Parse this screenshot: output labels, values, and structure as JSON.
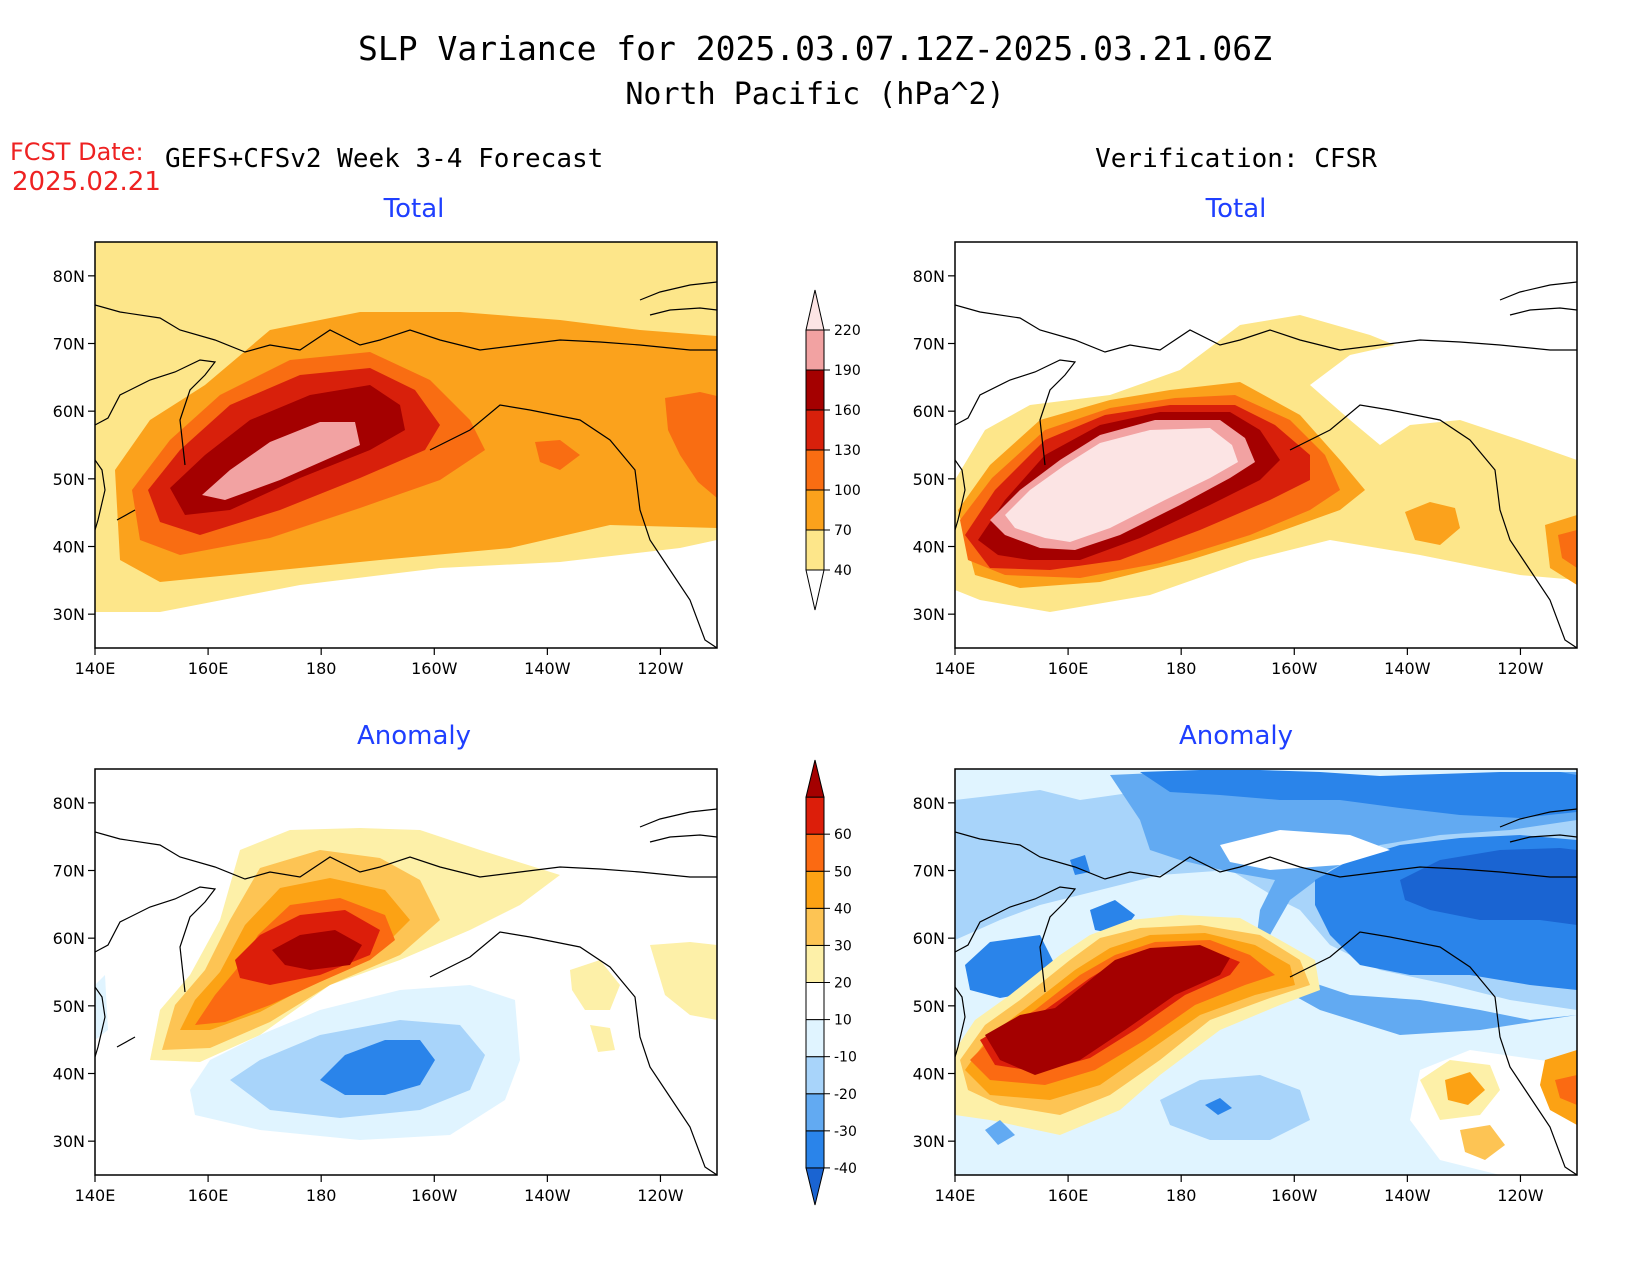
{
  "title": {
    "line1": "SLP Variance for 2025.03.07.12Z-2025.03.21.06Z",
    "line2": "North Pacific (hPa^2)"
  },
  "fcst_date": {
    "label": "FCST Date:",
    "value": "2025.02.21"
  },
  "columns": {
    "left": "GEFS+CFSv2 Week 3-4 Forecast",
    "right": "Verification: CFSR"
  },
  "panels": {
    "tl": {
      "subtitle": "Total"
    },
    "tr": {
      "subtitle": "Total"
    },
    "bl": {
      "subtitle": "Anomaly"
    },
    "br": {
      "subtitle": "Anomaly"
    }
  },
  "axes": {
    "lon_ticks": [
      "140E",
      "160E",
      "180",
      "160W",
      "140W",
      "120W"
    ],
    "lon_values": [
      140,
      160,
      180,
      200,
      220,
      240
    ],
    "lon_range": [
      140,
      250
    ],
    "lat_ticks": [
      "30N",
      "40N",
      "50N",
      "60N",
      "70N",
      "80N"
    ],
    "lat_values": [
      30,
      40,
      50,
      60,
      70,
      80
    ],
    "lat_range": [
      25,
      85
    ]
  },
  "colorbars": {
    "total": {
      "labels": [
        "40",
        "70",
        "100",
        "130",
        "160",
        "190",
        "220"
      ],
      "colors": [
        "#ffffff",
        "#fde68a",
        "#fba21c",
        "#f96d12",
        "#d8200b",
        "#a40000",
        "#f2a2a2",
        "#fce4e4"
      ]
    },
    "anomaly": {
      "labels": [
        "-40",
        "-30",
        "-20",
        "-10",
        "10",
        "20",
        "30",
        "40",
        "50",
        "60"
      ],
      "colors": [
        "#1a64d2",
        "#2a84ea",
        "#62aaf2",
        "#a8d4fa",
        "#e0f4ff",
        "#ffffff",
        "#fdf0a8",
        "#fdc454",
        "#fca214",
        "#fb6a12",
        "#dc1e0a",
        "#a40000"
      ]
    }
  }
}
